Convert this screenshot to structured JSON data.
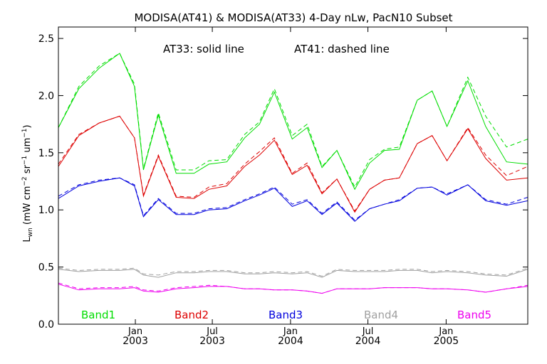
{
  "chart_data": {
    "type": "line",
    "title": "MODISA(AT41) & MODISA(AT33) 4-Day nLw, PacN10 Subset",
    "annotation_solid": "AT33: solid line",
    "annotation_dashed": "AT41: dashed line",
    "ylabel": "L_wn (mW cm^-2 sr^-1 um^-1)",
    "ylabel_parts": {
      "main": "L",
      "sub": "wn",
      "unit_open": " (mW cm",
      "e1": "−2",
      "sr": " sr",
      "e2": "−1",
      "um": " um",
      "e3": "−1",
      "close": ")"
    },
    "ylim": [
      0,
      2.6
    ],
    "yticks": [
      0.0,
      0.5,
      1.0,
      1.5,
      2.0,
      2.5
    ],
    "ytick_labels": [
      "0.0",
      "0.5",
      "1.0",
      "1.5",
      "2.0",
      "2.5"
    ],
    "xlim": [
      "2002-07-04",
      "2005-07-12"
    ],
    "xticks": [
      {
        "date": "2003-01-01",
        "month": "Jan",
        "year": "2003"
      },
      {
        "date": "2003-07-01",
        "month": "Jul",
        "year": "2003"
      },
      {
        "date": "2004-01-01",
        "month": "Jan",
        "year": "2004"
      },
      {
        "date": "2004-07-01",
        "month": "Jul",
        "year": "2004"
      },
      {
        "date": "2005-01-01",
        "month": "Jan",
        "year": "2005"
      }
    ],
    "x": [
      "2002-07-04",
      "2002-08-21",
      "2002-10-08",
      "2002-11-25",
      "2002-12-30",
      "2003-01-20",
      "2003-02-24",
      "2003-04-07",
      "2003-05-19",
      "2003-06-23",
      "2003-08-04",
      "2003-09-15",
      "2003-10-20",
      "2003-11-24",
      "2004-01-05",
      "2004-02-09",
      "2004-03-15",
      "2004-04-19",
      "2004-05-31",
      "2004-07-05",
      "2004-08-09",
      "2004-09-13",
      "2004-10-25",
      "2004-11-29",
      "2005-01-03",
      "2005-02-21",
      "2005-04-04",
      "2005-05-23",
      "2005-07-12"
    ],
    "series": [
      {
        "name": "Band1",
        "color": "#00dd00",
        "solid": [
          1.72,
          2.06,
          2.24,
          2.37,
          2.08,
          1.35,
          1.83,
          1.32,
          1.32,
          1.4,
          1.42,
          1.63,
          1.75,
          2.03,
          1.62,
          1.72,
          1.37,
          1.52,
          1.18,
          1.41,
          1.52,
          1.53,
          1.96,
          2.04,
          1.73,
          2.13,
          1.73,
          1.42,
          1.4
        ],
        "dashed": [
          1.72,
          2.08,
          2.26,
          2.37,
          2.1,
          1.36,
          1.85,
          1.35,
          1.35,
          1.43,
          1.44,
          1.66,
          1.77,
          2.06,
          1.65,
          1.75,
          1.38,
          1.52,
          1.2,
          1.44,
          1.53,
          1.55,
          1.96,
          2.04,
          1.73,
          2.16,
          1.82,
          1.55,
          1.62
        ]
      },
      {
        "name": "Band2",
        "color": "#dd0000",
        "solid": [
          1.38,
          1.65,
          1.76,
          1.82,
          1.63,
          1.12,
          1.47,
          1.11,
          1.1,
          1.18,
          1.21,
          1.38,
          1.48,
          1.61,
          1.31,
          1.39,
          1.14,
          1.27,
          0.98,
          1.18,
          1.26,
          1.28,
          1.58,
          1.65,
          1.43,
          1.71,
          1.45,
          1.26,
          1.28
        ],
        "dashed": [
          1.4,
          1.66,
          1.76,
          1.82,
          1.63,
          1.13,
          1.48,
          1.12,
          1.11,
          1.2,
          1.23,
          1.4,
          1.51,
          1.63,
          1.32,
          1.41,
          1.15,
          1.27,
          0.99,
          1.18,
          1.26,
          1.28,
          1.58,
          1.65,
          1.43,
          1.72,
          1.48,
          1.3,
          1.38
        ]
      },
      {
        "name": "Band3",
        "color": "#0000dd",
        "solid": [
          1.1,
          1.21,
          1.25,
          1.28,
          1.21,
          0.94,
          1.09,
          0.96,
          0.96,
          1.0,
          1.01,
          1.08,
          1.13,
          1.19,
          1.03,
          1.08,
          0.96,
          1.06,
          0.9,
          1.01,
          1.05,
          1.08,
          1.19,
          1.2,
          1.13,
          1.22,
          1.08,
          1.04,
          1.08
        ],
        "dashed": [
          1.12,
          1.22,
          1.26,
          1.28,
          1.22,
          0.95,
          1.1,
          0.97,
          0.97,
          1.01,
          1.02,
          1.09,
          1.14,
          1.2,
          1.05,
          1.09,
          0.97,
          1.07,
          0.91,
          1.01,
          1.05,
          1.09,
          1.19,
          1.2,
          1.14,
          1.22,
          1.09,
          1.05,
          1.11
        ]
      },
      {
        "name": "Band4",
        "color": "#a0a0a0",
        "solid": [
          0.48,
          0.46,
          0.47,
          0.47,
          0.48,
          0.43,
          0.41,
          0.45,
          0.45,
          0.46,
          0.46,
          0.44,
          0.44,
          0.45,
          0.44,
          0.45,
          0.41,
          0.47,
          0.46,
          0.46,
          0.46,
          0.47,
          0.47,
          0.45,
          0.46,
          0.45,
          0.43,
          0.42,
          0.48
        ],
        "dashed": [
          0.49,
          0.47,
          0.48,
          0.48,
          0.49,
          0.44,
          0.43,
          0.46,
          0.46,
          0.47,
          0.47,
          0.45,
          0.45,
          0.46,
          0.45,
          0.46,
          0.42,
          0.48,
          0.47,
          0.47,
          0.47,
          0.48,
          0.48,
          0.46,
          0.47,
          0.46,
          0.44,
          0.43,
          0.49
        ]
      },
      {
        "name": "Band5",
        "color": "#ee00ee",
        "solid": [
          0.35,
          0.3,
          0.31,
          0.31,
          0.32,
          0.29,
          0.28,
          0.31,
          0.32,
          0.33,
          0.33,
          0.31,
          0.31,
          0.3,
          0.3,
          0.29,
          0.27,
          0.31,
          0.31,
          0.31,
          0.32,
          0.32,
          0.32,
          0.31,
          0.31,
          0.3,
          0.28,
          0.31,
          0.33
        ],
        "dashed": [
          0.36,
          0.31,
          0.32,
          0.32,
          0.33,
          0.3,
          0.29,
          0.32,
          0.33,
          0.34,
          0.33,
          0.31,
          0.31,
          0.3,
          0.3,
          0.29,
          0.27,
          0.31,
          0.31,
          0.31,
          0.32,
          0.32,
          0.32,
          0.31,
          0.31,
          0.3,
          0.28,
          0.31,
          0.34
        ]
      }
    ],
    "grid": false
  }
}
